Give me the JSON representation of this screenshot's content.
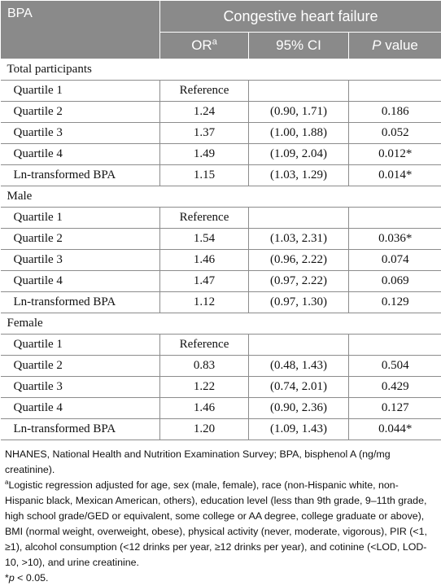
{
  "table": {
    "corner": "BPA",
    "group_header": "Congestive heart failure",
    "col_or": "OR",
    "col_or_sup": "a",
    "col_ci": "95% CI",
    "col_p_italic": "P",
    "col_p_rest": " value",
    "sections": [
      {
        "title": "Total participants",
        "rows": [
          {
            "label": "Quartile 1",
            "or": "Reference",
            "ci": "",
            "p": ""
          },
          {
            "label": "Quartile 2",
            "or": "1.24",
            "ci": "(0.90, 1.71)",
            "p": "0.186"
          },
          {
            "label": "Quartile 3",
            "or": "1.37",
            "ci": "(1.00, 1.88)",
            "p": "0.052"
          },
          {
            "label": "Quartile 4",
            "or": "1.49",
            "ci": "(1.09, 2.04)",
            "p": "0.012*"
          },
          {
            "label": "Ln-transformed BPA",
            "or": "1.15",
            "ci": "(1.03, 1.29)",
            "p": "0.014*"
          }
        ]
      },
      {
        "title": "Male",
        "rows": [
          {
            "label": "Quartile 1",
            "or": "Reference",
            "ci": "",
            "p": ""
          },
          {
            "label": "Quartile 2",
            "or": "1.54",
            "ci": "(1.03, 2.31)",
            "p": "0.036*"
          },
          {
            "label": "Quartile 3",
            "or": "1.46",
            "ci": "(0.96, 2.22)",
            "p": "0.074"
          },
          {
            "label": "Quartile 4",
            "or": "1.47",
            "ci": "(0.97, 2.22)",
            "p": "0.069"
          },
          {
            "label": "Ln-transformed BPA",
            "or": "1.12",
            "ci": "(0.97, 1.30)",
            "p": "0.129"
          }
        ]
      },
      {
        "title": "Female",
        "rows": [
          {
            "label": "Quartile 1",
            "or": "Reference",
            "ci": "",
            "p": ""
          },
          {
            "label": "Quartile 2",
            "or": "0.83",
            "ci": "(0.48, 1.43)",
            "p": "0.504"
          },
          {
            "label": "Quartile 3",
            "or": "1.22",
            "ci": "(0.74, 2.01)",
            "p": "0.429"
          },
          {
            "label": "Quartile 4",
            "or": "1.46",
            "ci": "(0.90, 2.36)",
            "p": "0.127"
          },
          {
            "label": "Ln-transformed BPA",
            "or": "1.20",
            "ci": "(1.09, 1.43)",
            "p": "0.044*"
          }
        ]
      }
    ]
  },
  "footnotes": {
    "abbreviations": "NHANES, National Health and Nutrition Examination Survey; BPA, bisphenol A (ng/mg creatinine).",
    "note_a_marker": "a",
    "note_a": "Logistic regression adjusted for age, sex (male, female), race (non-Hispanic white, non-Hispanic black, Mexican American, others), education level (less than 9th grade, 9–11th grade, high school grade/GED or equivalent, some college or AA degree, college graduate or above), BMI (normal weight, overweight, obese), physical activity (never, moderate, vigorous), PIR (<1, ≥1), alcohol consumption (<12 drinks per year, ≥12 drinks per year), and cotinine (<LOD, LOD-10, >10), and urine creatinine.",
    "note_star_prefix": "*",
    "note_star_italic": "p",
    "note_star_rest": " < 0.05."
  }
}
